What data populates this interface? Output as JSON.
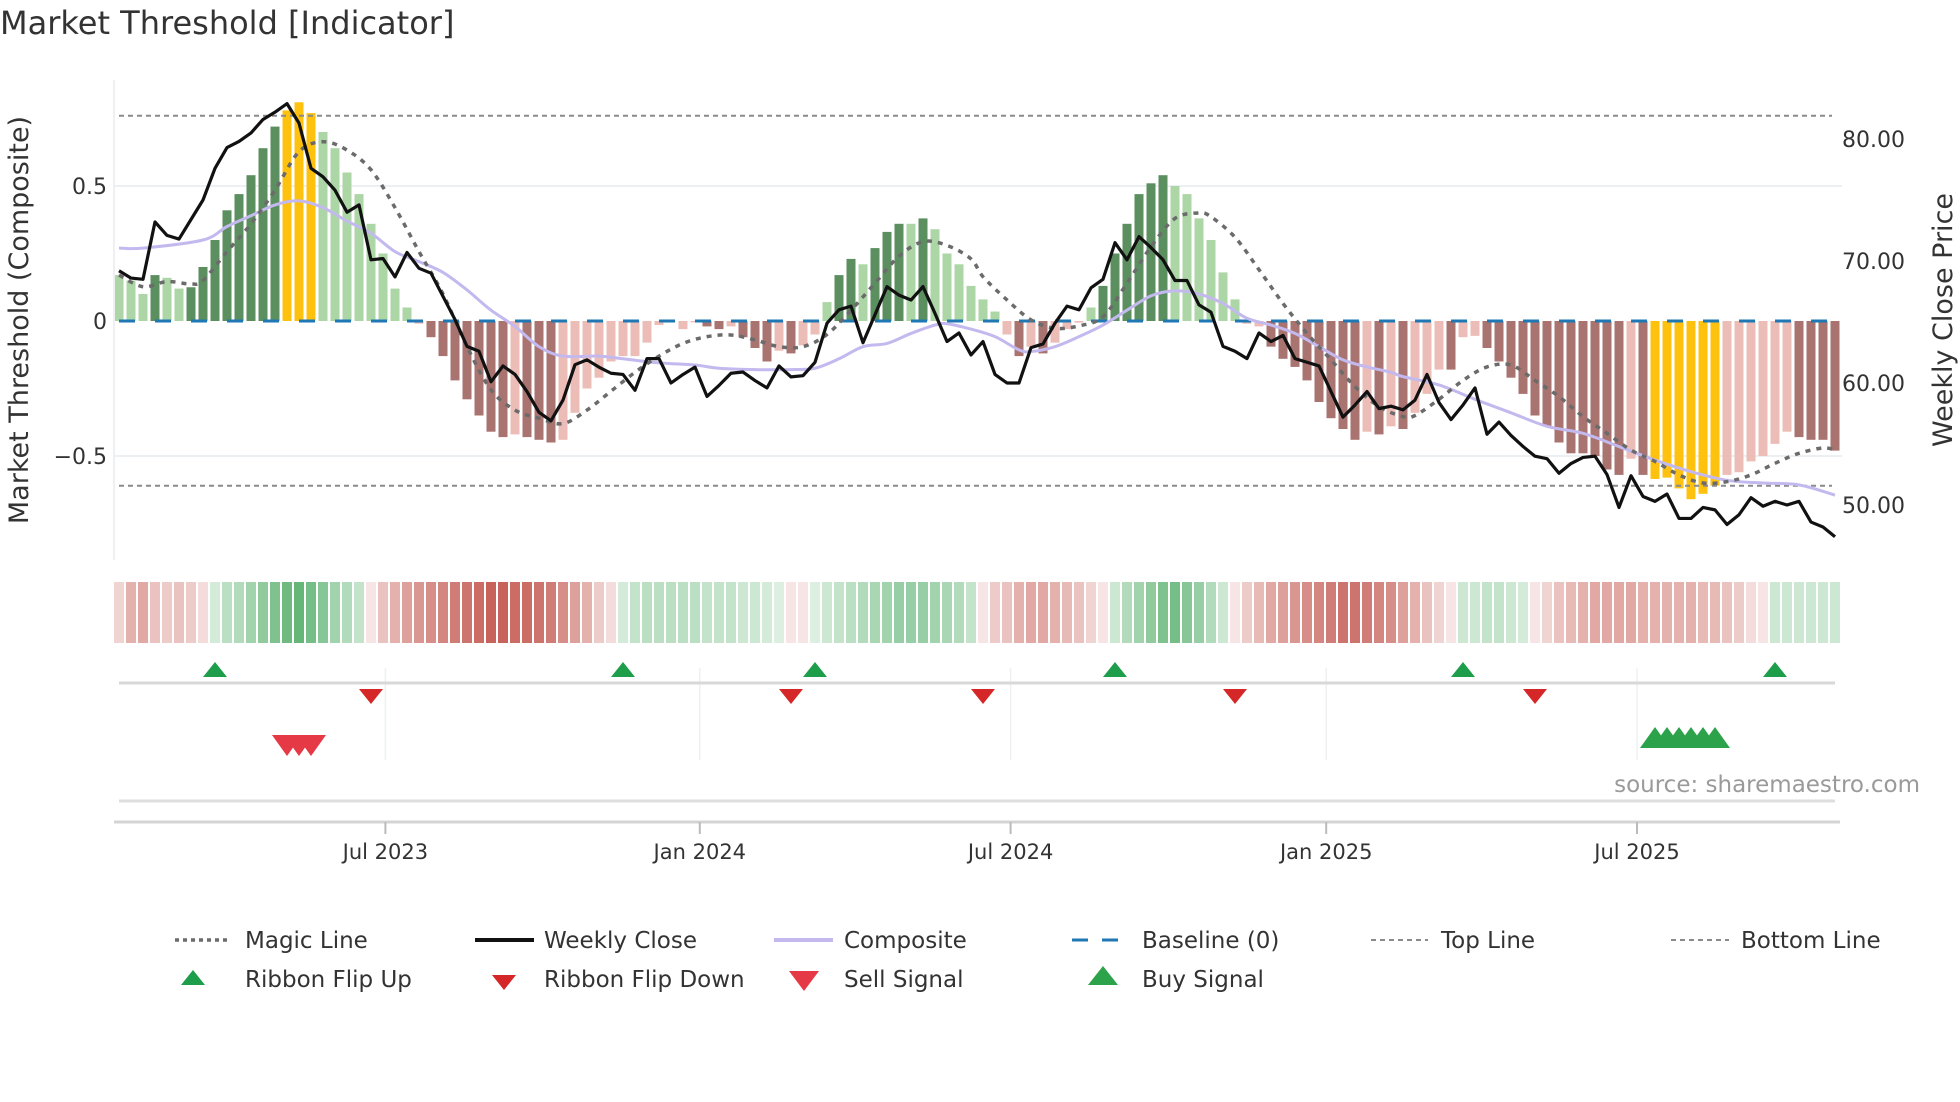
{
  "title": "Market Threshold [Indicator]",
  "source": "source: sharemaestro.com",
  "colors": {
    "bar_D": "#5b8f5f",
    "bar_L": "#acd6a6",
    "bar_G": "#fdc10e",
    "bar_R": "#a97370",
    "bar_P": "#ecbcb7",
    "close": "#111111",
    "composite": "#c3b9ee",
    "magic": "#6b6b6b",
    "baseline": "#1f77b4",
    "ref_lines": "#8a8a8a",
    "flip_up": "#1e9e4a",
    "flip_down": "#d62728",
    "sell": "#e63946",
    "buy": "#2ca24a",
    "ribbon_pos": "#5cb270",
    "ribbon_neg": "#c55a52"
  },
  "chart_data": {
    "type": "bar+line",
    "title": "Market Threshold [Indicator]",
    "ylabel": "Market Threshold (Composite)",
    "y2label": "Weekly Close Price",
    "ylim": [
      -0.89,
      0.89
    ],
    "y2lim": [
      45.5,
      84.8
    ],
    "yticks": [
      {
        "v": 0.5,
        "label": "0.5"
      },
      {
        "v": 0,
        "label": "0"
      },
      {
        "v": -0.5,
        "label": "−0.5"
      }
    ],
    "y2ticks": [
      {
        "v": 80,
        "label": "80.00"
      },
      {
        "v": 70,
        "label": "70.00"
      },
      {
        "v": 60,
        "label": "60.00"
      },
      {
        "v": 50,
        "label": "50.00"
      }
    ],
    "xticks": [
      {
        "week": 22.2,
        "label": "Jul 2023"
      },
      {
        "week": 48.4,
        "label": "Jan 2024"
      },
      {
        "week": 74.3,
        "label": "Jul 2024"
      },
      {
        "week": 100.6,
        "label": "Jan 2025"
      },
      {
        "week": 126.5,
        "label": "Jul 2025"
      }
    ],
    "top_line": 0.76,
    "bottom_line": -0.61,
    "weeks": 144,
    "histogram": [
      0.17,
      0.15,
      0.1,
      0.17,
      0.16,
      0.12,
      0.125,
      0.2,
      0.3,
      0.41,
      0.47,
      0.54,
      0.64,
      0.72,
      0.78,
      0.81,
      0.77,
      0.7,
      0.64,
      0.55,
      0.47,
      0.36,
      0.25,
      0.12,
      0.05,
      -0.01,
      -0.06,
      -0.13,
      -0.22,
      -0.29,
      -0.35,
      -0.41,
      -0.43,
      -0.42,
      -0.43,
      -0.44,
      -0.45,
      -0.44,
      -0.34,
      -0.25,
      -0.21,
      -0.15,
      -0.13,
      -0.13,
      -0.08,
      -0.015,
      -0.005,
      -0.03,
      -0.005,
      -0.02,
      -0.03,
      -0.02,
      -0.06,
      -0.1,
      -0.15,
      -0.11,
      -0.12,
      -0.09,
      -0.05,
      0.07,
      0.17,
      0.23,
      0.21,
      0.27,
      0.33,
      0.36,
      0.36,
      0.38,
      0.34,
      0.25,
      0.21,
      0.13,
      0.08,
      0.035,
      -0.05,
      -0.13,
      -0.095,
      -0.12,
      -0.08,
      -0.03,
      -0.006,
      0.05,
      0.13,
      0.25,
      0.36,
      0.47,
      0.51,
      0.54,
      0.5,
      0.47,
      0.38,
      0.3,
      0.18,
      0.08,
      -0.01,
      -0.02,
      -0.095,
      -0.14,
      -0.17,
      -0.22,
      -0.3,
      -0.36,
      -0.4,
      -0.44,
      -0.41,
      -0.42,
      -0.39,
      -0.4,
      -0.34,
      -0.27,
      -0.18,
      -0.18,
      -0.06,
      -0.055,
      -0.1,
      -0.15,
      -0.21,
      -0.27,
      -0.35,
      -0.39,
      -0.45,
      -0.49,
      -0.49,
      -0.5,
      -0.55,
      -0.57,
      -0.51,
      -0.57,
      -0.585,
      -0.58,
      -0.62,
      -0.66,
      -0.64,
      -0.61,
      -0.57,
      -0.56,
      -0.52,
      -0.5,
      -0.455,
      -0.41,
      -0.43,
      -0.44,
      -0.44,
      -0.48
    ],
    "histogram_states": "LLLDLLDDDDDDDDGGGLLLLLLLLPRRRRRRRPRRRPPPPPPPPPPPPRRPRRRPRPPLDDLDDDLDLLLLLLPRPRPPPLDDDDDDLLLLLLPPRRRRRRRRPRPRPPPRPPRRRRRRRRRRRRPRGGGGGGPPPPPPRRRR",
    "weekly_close": [
      69.2,
      68.6,
      68.5,
      73.2,
      72.1,
      71.8,
      73.4,
      75.0,
      77.6,
      79.3,
      79.8,
      80.5,
      81.6,
      82.2,
      82.9,
      81.3,
      77.6,
      76.9,
      75.8,
      74.0,
      74.6,
      70.1,
      70.2,
      68.7,
      70.7,
      69.4,
      69.0,
      67.1,
      65.2,
      63.0,
      62.6,
      60.1,
      61.4,
      60.7,
      59.3,
      57.6,
      56.9,
      58.6,
      61.5,
      61.9,
      61.3,
      60.8,
      60.7,
      59.4,
      62.0,
      62.0,
      60.0,
      60.7,
      61.3,
      58.9,
      59.8,
      60.8,
      60.9,
      60.2,
      59.6,
      61.4,
      60.5,
      60.6,
      61.7,
      64.9,
      66.0,
      66.3,
      63.3,
      65.6,
      67.9,
      67.2,
      66.8,
      67.9,
      65.7,
      63.4,
      64.1,
      62.3,
      63.4,
      60.7,
      60.0,
      60.0,
      62.9,
      63.2,
      64.9,
      66.3,
      66.0,
      67.8,
      68.5,
      71.5,
      70.1,
      72.0,
      71.1,
      70.1,
      68.4,
      68.4,
      66.4,
      65.8,
      63.0,
      62.6,
      62.0,
      64.1,
      63.4,
      63.9,
      62.0,
      61.7,
      61.4,
      59.3,
      57.2,
      58.2,
      59.3,
      57.9,
      58.1,
      57.8,
      58.6,
      60.7,
      58.4,
      57.0,
      58.2,
      59.6,
      55.8,
      56.8,
      55.7,
      54.8,
      54.0,
      53.8,
      52.6,
      53.4,
      53.9,
      54.0,
      52.5,
      49.8,
      52.4,
      50.7,
      50.3,
      50.9,
      48.9,
      48.9,
      49.8,
      49.6,
      48.4,
      49.2,
      50.6,
      49.9,
      50.3,
      50.0,
      50.3,
      48.6,
      48.2,
      47.4
    ],
    "composite": [
      [
        0,
        0.27
      ],
      [
        2,
        0.27
      ],
      [
        7,
        0.3
      ],
      [
        9,
        0.35
      ],
      [
        11,
        0.39
      ],
      [
        13,
        0.43
      ],
      [
        15,
        0.445
      ],
      [
        17,
        0.42
      ],
      [
        19,
        0.37
      ],
      [
        21,
        0.325
      ],
      [
        23,
        0.257
      ],
      [
        25,
        0.22
      ],
      [
        27,
        0.18
      ],
      [
        29,
        0.115
      ],
      [
        31,
        0.04
      ],
      [
        33,
        -0.02
      ],
      [
        35,
        -0.095
      ],
      [
        37,
        -0.13
      ],
      [
        40,
        -0.13
      ],
      [
        42,
        -0.14
      ],
      [
        45,
        -0.155
      ],
      [
        48,
        -0.163
      ],
      [
        50,
        -0.175
      ],
      [
        53,
        -0.18
      ],
      [
        56,
        -0.18
      ],
      [
        58,
        -0.175
      ],
      [
        60,
        -0.14
      ],
      [
        62,
        -0.095
      ],
      [
        64,
        -0.083
      ],
      [
        66,
        -0.046
      ],
      [
        68,
        -0.015
      ],
      [
        69,
        -0.01
      ],
      [
        71,
        -0.03
      ],
      [
        73,
        -0.058
      ],
      [
        75,
        -0.107
      ],
      [
        76,
        -0.113
      ],
      [
        78,
        -0.095
      ],
      [
        80,
        -0.058
      ],
      [
        82,
        -0.015
      ],
      [
        84,
        0.04
      ],
      [
        86,
        0.093
      ],
      [
        88,
        0.112
      ],
      [
        90,
        0.1
      ],
      [
        92,
        0.065
      ],
      [
        94,
        0.01
      ],
      [
        96,
        -0.015
      ],
      [
        98,
        -0.046
      ],
      [
        100,
        -0.095
      ],
      [
        102,
        -0.144
      ],
      [
        104,
        -0.17
      ],
      [
        106,
        -0.19
      ],
      [
        107,
        -0.206
      ],
      [
        110,
        -0.237
      ],
      [
        113,
        -0.29
      ],
      [
        116,
        -0.34
      ],
      [
        119,
        -0.39
      ],
      [
        122,
        -0.416
      ],
      [
        125,
        -0.465
      ],
      [
        128,
        -0.515
      ],
      [
        131,
        -0.558
      ],
      [
        134,
        -0.59
      ],
      [
        137,
        -0.6
      ],
      [
        140,
        -0.607
      ],
      [
        143,
        -0.645
      ]
    ],
    "magic_line": [
      [
        0,
        0.17
      ],
      [
        2,
        0.127
      ],
      [
        4,
        0.146
      ],
      [
        6,
        0.137
      ],
      [
        7,
        0.15
      ],
      [
        9,
        0.257
      ],
      [
        11,
        0.36
      ],
      [
        13,
        0.485
      ],
      [
        15,
        0.627
      ],
      [
        17,
        0.664
      ],
      [
        19,
        0.633
      ],
      [
        21,
        0.56
      ],
      [
        23,
        0.42
      ],
      [
        25,
        0.257
      ],
      [
        27,
        0.1
      ],
      [
        29,
        -0.095
      ],
      [
        31,
        -0.255
      ],
      [
        33,
        -0.33
      ],
      [
        35,
        -0.36
      ],
      [
        37,
        -0.38
      ],
      [
        39,
        -0.33
      ],
      [
        41,
        -0.26
      ],
      [
        43,
        -0.19
      ],
      [
        45,
        -0.13
      ],
      [
        47,
        -0.083
      ],
      [
        49,
        -0.058
      ],
      [
        51,
        -0.052
      ],
      [
        53,
        -0.07
      ],
      [
        55,
        -0.095
      ],
      [
        57,
        -0.095
      ],
      [
        59,
        -0.05
      ],
      [
        61,
        0.04
      ],
      [
        63,
        0.14
      ],
      [
        65,
        0.24
      ],
      [
        67,
        0.294
      ],
      [
        69,
        0.28
      ],
      [
        71,
        0.23
      ],
      [
        72,
        0.164
      ],
      [
        74,
        0.078
      ],
      [
        76,
        0.004
      ],
      [
        78,
        -0.027
      ],
      [
        80,
        -0.018
      ],
      [
        82,
        0.016
      ],
      [
        84,
        0.14
      ],
      [
        86,
        0.275
      ],
      [
        88,
        0.38
      ],
      [
        90,
        0.4
      ],
      [
        91,
        0.386
      ],
      [
        93,
        0.31
      ],
      [
        95,
        0.19
      ],
      [
        97,
        0.065
      ],
      [
        99,
        -0.046
      ],
      [
        101,
        -0.144
      ],
      [
        103,
        -0.243
      ],
      [
        105,
        -0.317
      ],
      [
        107,
        -0.354
      ],
      [
        108,
        -0.35
      ],
      [
        110,
        -0.29
      ],
      [
        112,
        -0.22
      ],
      [
        114,
        -0.17
      ],
      [
        116,
        -0.163
      ],
      [
        118,
        -0.22
      ],
      [
        120,
        -0.28
      ],
      [
        122,
        -0.354
      ],
      [
        124,
        -0.416
      ],
      [
        126,
        -0.478
      ],
      [
        128,
        -0.52
      ],
      [
        130,
        -0.57
      ],
      [
        132,
        -0.6
      ],
      [
        134,
        -0.595
      ],
      [
        136,
        -0.57
      ],
      [
        138,
        -0.527
      ],
      [
        140,
        -0.49
      ],
      [
        142,
        -0.47
      ],
      [
        143,
        -0.478
      ]
    ],
    "ribbon": [
      -0.25,
      -0.45,
      -0.5,
      -0.35,
      -0.3,
      -0.35,
      -0.3,
      -0.2,
      0.25,
      0.4,
      0.45,
      0.55,
      0.65,
      0.75,
      0.85,
      0.9,
      0.8,
      0.7,
      0.55,
      0.45,
      0.35,
      -0.15,
      -0.35,
      -0.45,
      -0.55,
      -0.6,
      -0.65,
      -0.7,
      -0.75,
      -0.8,
      -0.85,
      -0.9,
      -0.9,
      -0.85,
      -0.85,
      -0.8,
      -0.75,
      -0.65,
      -0.55,
      -0.45,
      -0.3,
      -0.2,
      0.25,
      0.35,
      0.4,
      0.4,
      0.4,
      0.4,
      0.4,
      0.35,
      0.35,
      0.35,
      0.3,
      0.3,
      0.25,
      0.2,
      -0.15,
      -0.15,
      0.2,
      0.3,
      0.35,
      0.4,
      0.45,
      0.5,
      0.55,
      0.6,
      0.6,
      0.6,
      0.55,
      0.5,
      0.45,
      0.35,
      -0.15,
      -0.3,
      -0.35,
      -0.45,
      -0.5,
      -0.5,
      -0.45,
      -0.4,
      -0.35,
      -0.25,
      -0.15,
      0.3,
      0.45,
      0.55,
      0.65,
      0.75,
      0.8,
      0.7,
      0.6,
      0.45,
      0.3,
      -0.15,
      -0.3,
      -0.4,
      -0.5,
      -0.55,
      -0.6,
      -0.65,
      -0.7,
      -0.75,
      -0.8,
      -0.8,
      -0.75,
      -0.7,
      -0.65,
      -0.55,
      -0.45,
      -0.35,
      -0.25,
      -0.15,
      0.3,
      0.3,
      0.35,
      0.35,
      0.3,
      0.25,
      -0.15,
      -0.25,
      -0.35,
      -0.4,
      -0.45,
      -0.5,
      -0.5,
      -0.5,
      -0.5,
      -0.45,
      -0.45,
      -0.45,
      -0.45,
      -0.45,
      -0.4,
      -0.4,
      -0.35,
      -0.3,
      -0.2,
      -0.15,
      0.3,
      0.3,
      0.3,
      0.3,
      0.3,
      0.3
    ],
    "ribbon_flip_up_weeks": [
      8,
      42,
      58,
      83,
      112,
      138
    ],
    "ribbon_flip_down_weeks": [
      21,
      56,
      72,
      93,
      118
    ],
    "sell_signal_weeks": [
      14,
      15,
      16
    ],
    "buy_signal_weeks": [
      128,
      129,
      130,
      131,
      132,
      133
    ],
    "legend": [
      {
        "label": "Magic Line",
        "kind": "dotted"
      },
      {
        "label": "Weekly Close",
        "kind": "solid-black"
      },
      {
        "label": "Composite",
        "kind": "solid-lavender"
      },
      {
        "label": "Baseline (0)",
        "kind": "dashed-blue"
      },
      {
        "label": "Top Line",
        "kind": "fine-dotted"
      },
      {
        "label": "Bottom Line",
        "kind": "fine-dotted"
      },
      {
        "label": "Ribbon Flip Up",
        "kind": "triangle-up"
      },
      {
        "label": "Ribbon Flip Down",
        "kind": "triangle-down"
      },
      {
        "label": "Sell Signal",
        "kind": "triangle-down-large"
      },
      {
        "label": "Buy Signal",
        "kind": "triangle-up-large"
      }
    ],
    "legend_placement": "bottom"
  }
}
